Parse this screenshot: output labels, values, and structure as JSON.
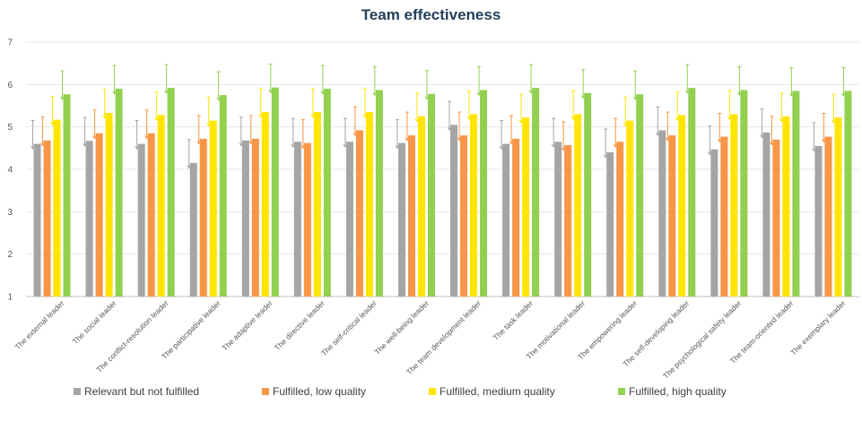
{
  "chart_data": {
    "type": "bar",
    "title": "Team effectiveness",
    "xlabel": "",
    "ylabel": "",
    "ylim": [
      1,
      7
    ],
    "yticks": [
      "1",
      "2",
      "3",
      "4",
      "5",
      "6",
      "7"
    ],
    "grid": true,
    "legend_position": "bottom",
    "error_bars": true,
    "categories": [
      "The external leader",
      "The social leader",
      "The conflict-resolution leader",
      "The participative leader",
      "The adaptive leader",
      "The directive leader",
      "The self-critical leader",
      "The well-being leader",
      "The team development leader",
      "The task leader",
      "The motivational leader",
      "The empowering leader",
      "The self-developing leader",
      "The psychological safety leader",
      "The team-oriented leader",
      "The exemplary leader"
    ],
    "series": [
      {
        "name": "Relevant but not fulfilled",
        "color": "#a5a5a5",
        "values": [
          4.6,
          4.67,
          4.6,
          4.15,
          4.68,
          4.65,
          4.65,
          4.62,
          5.05,
          4.6,
          4.65,
          4.4,
          4.92,
          4.47,
          4.87,
          4.55
        ]
      },
      {
        "name": "Fulfilled, low quality",
        "color": "#f79646",
        "values": [
          4.68,
          4.85,
          4.85,
          4.72,
          4.72,
          4.62,
          4.92,
          4.8,
          4.8,
          4.72,
          4.57,
          4.65,
          4.8,
          4.77,
          4.7,
          4.77
        ]
      },
      {
        "name": "Fulfilled, medium quality",
        "color": "#ffe500",
        "values": [
          5.17,
          5.33,
          5.28,
          5.15,
          5.35,
          5.35,
          5.35,
          5.25,
          5.3,
          5.22,
          5.3,
          5.15,
          5.28,
          5.3,
          5.25,
          5.22
        ]
      },
      {
        "name": "Fulfilled, high quality",
        "color": "#92d050",
        "values": [
          5.77,
          5.9,
          5.92,
          5.75,
          5.93,
          5.9,
          5.87,
          5.78,
          5.87,
          5.92,
          5.8,
          5.77,
          5.92,
          5.87,
          5.85,
          5.85
        ]
      }
    ]
  }
}
